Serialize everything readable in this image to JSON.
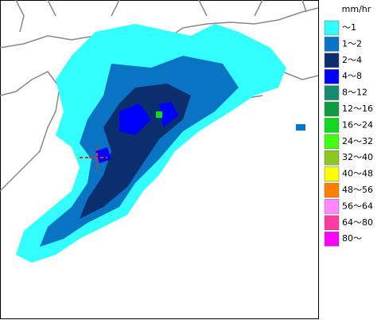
{
  "legend": {
    "unit": "mm/hr",
    "items": [
      {
        "label": "～1",
        "color": "#33ffff"
      },
      {
        "label": "1～2",
        "color": "#0a74c4"
      },
      {
        "label": "2～4",
        "color": "#0a2e6e"
      },
      {
        "label": "4～8",
        "color": "#0000ff"
      },
      {
        "label": "8～12",
        "color": "#148a6e"
      },
      {
        "label": "12～16",
        "color": "#109a40"
      },
      {
        "label": "16～24",
        "color": "#10d820"
      },
      {
        "label": "24～32",
        "color": "#44ff10"
      },
      {
        "label": "32～40",
        "color": "#8cc820"
      },
      {
        "label": "40～48",
        "color": "#ffff00"
      },
      {
        "label": "48～56",
        "color": "#ff8000"
      },
      {
        "label": "56～64",
        "color": "#ff88ff"
      },
      {
        "label": "64～80",
        "color": "#ff3aa0"
      },
      {
        "label": "80～",
        "color": "#ff00ff"
      }
    ]
  }
}
